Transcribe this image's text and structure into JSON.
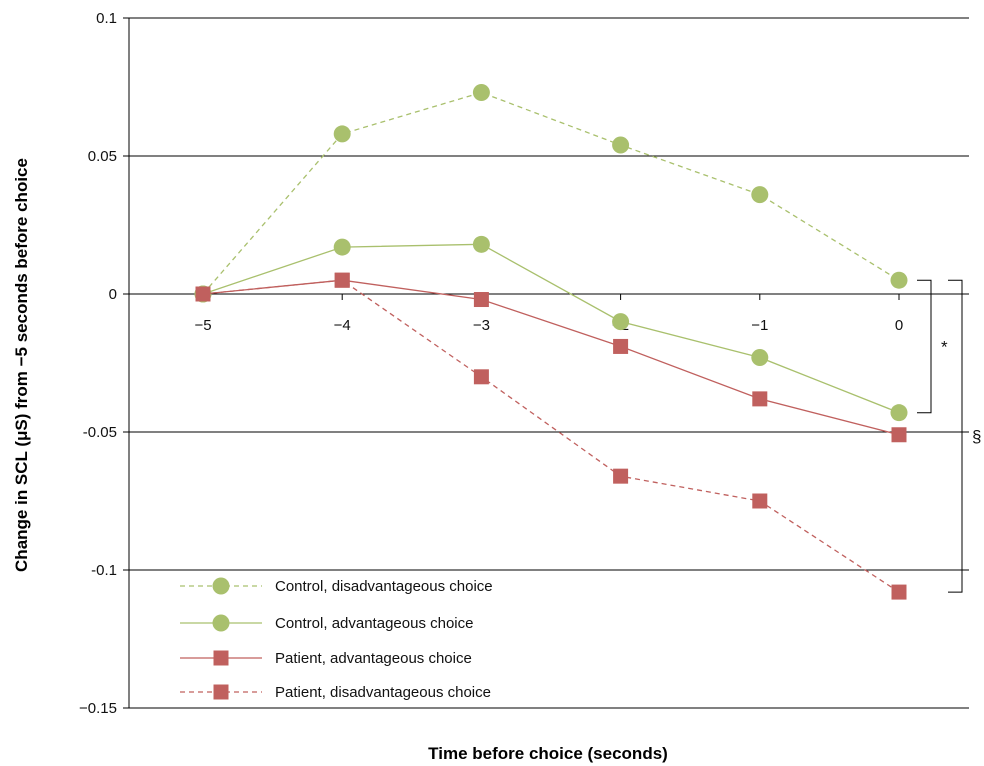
{
  "chart_data": {
    "type": "line",
    "title": "",
    "xlabel": "Time before choice (seconds)",
    "ylabel": "Change in SCL (μS) from −5 seconds before choice",
    "x": [
      -5,
      -4,
      -3,
      -2,
      -1,
      0
    ],
    "x_tick_labels": [
      "−5",
      "−4",
      "−3",
      "−2",
      "−1",
      "0"
    ],
    "ylim": [
      -0.15,
      0.1
    ],
    "y_ticks": [
      0.1,
      0.05,
      0,
      -0.05,
      -0.1,
      -0.15
    ],
    "y_tick_labels": [
      "0.1",
      "0.05",
      "0",
      "-0.05",
      "-0.1",
      "−0.15"
    ],
    "grid": "horizontal",
    "legend_position": "bottom-left",
    "series": [
      {
        "name": "Control, disadvantageous choice",
        "values": [
          0,
          0.058,
          0.073,
          0.054,
          0.036,
          0.005
        ],
        "color": "#a9c06d",
        "marker": "circle",
        "line": "dashed"
      },
      {
        "name": "Control, advantageous choice",
        "values": [
          0,
          0.017,
          0.018,
          -0.01,
          -0.023,
          -0.043
        ],
        "color": "#a9c06d",
        "marker": "circle",
        "line": "solid"
      },
      {
        "name": "Patient, advantageous choice",
        "values": [
          0,
          0.005,
          -0.002,
          -0.019,
          -0.038,
          -0.051
        ],
        "color": "#c0605e",
        "marker": "square",
        "line": "solid"
      },
      {
        "name": "Patient, disadvantageous choice",
        "values": [
          0,
          0.005,
          -0.03,
          -0.066,
          -0.075,
          -0.108
        ],
        "color": "#c0605e",
        "marker": "square",
        "line": "dashed"
      }
    ],
    "annotations": [
      {
        "text": "*",
        "spans_series": [
          "Control, disadvantageous choice",
          "Control, advantageous choice"
        ],
        "at_x": 0
      },
      {
        "text": "§",
        "spans_series": [
          "Control, disadvantageous choice",
          "Patient, disadvantageous choice"
        ],
        "at_x": 0
      }
    ]
  }
}
